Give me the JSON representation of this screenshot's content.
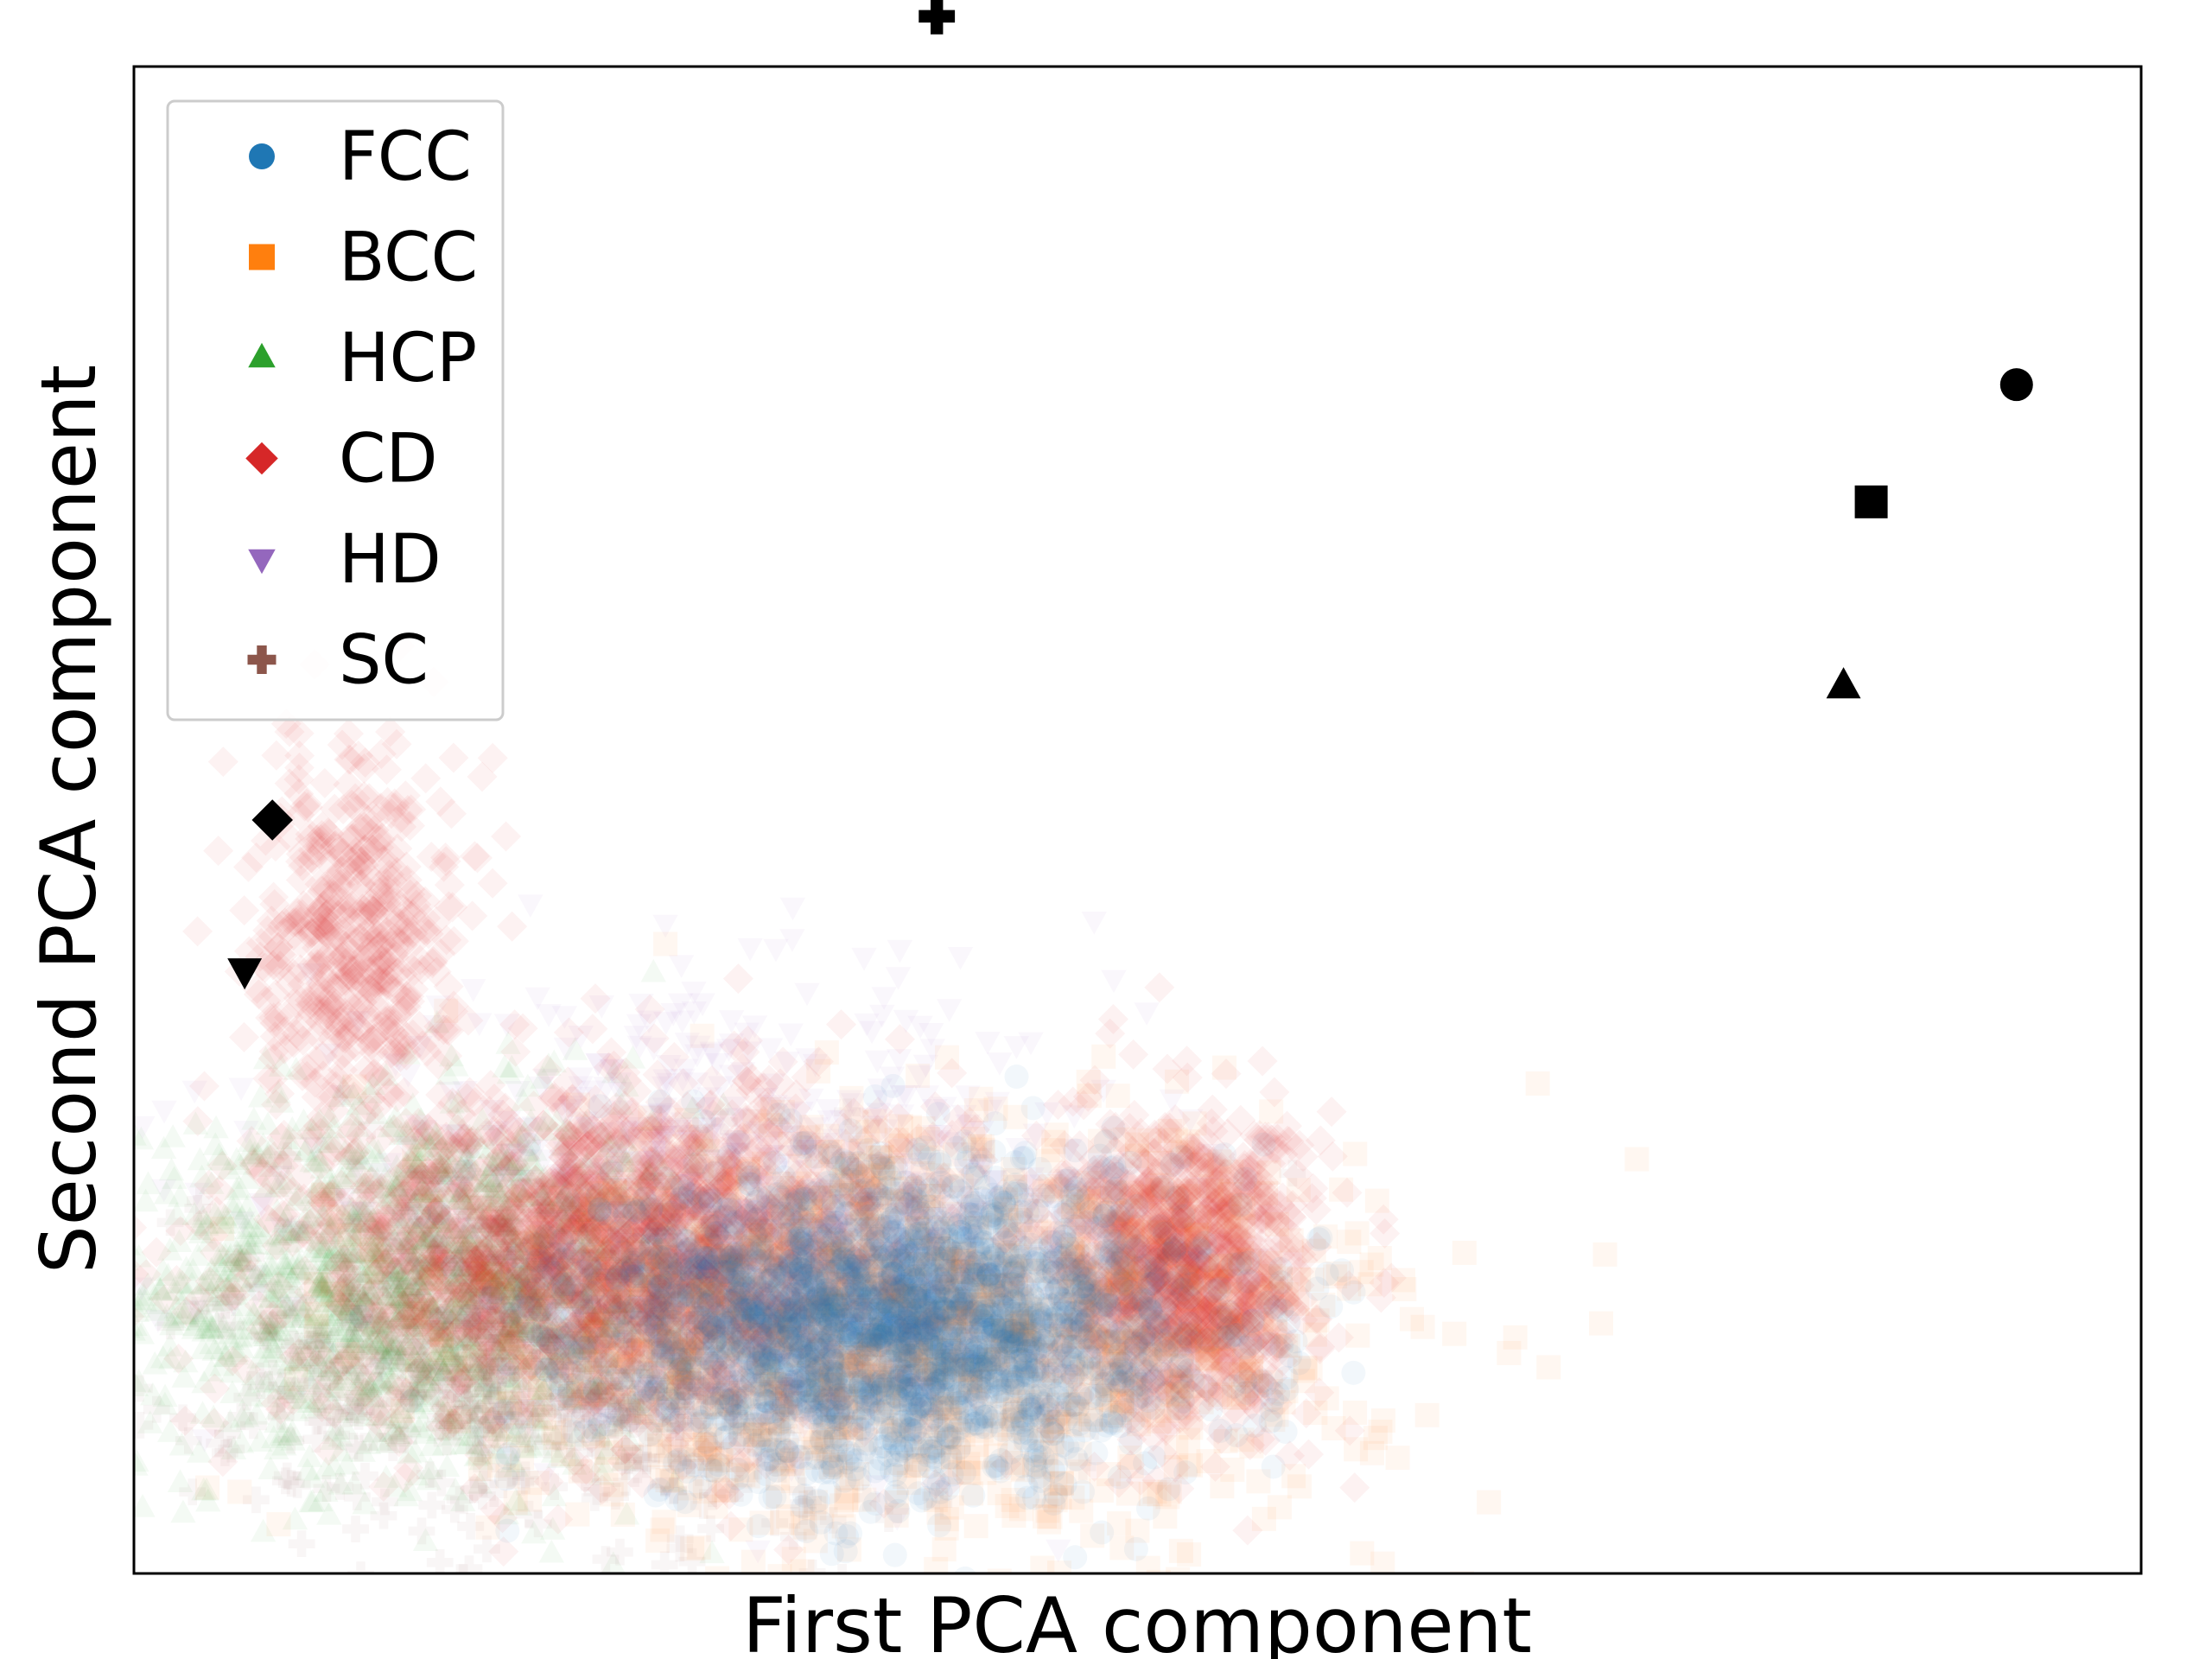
{
  "chart_data": {
    "type": "scatter",
    "title": "",
    "xlabel": "First PCA component",
    "ylabel": "Second PCA component",
    "xlim": [
      -4.5,
      10
    ],
    "ylim": [
      -2.5,
      6.5
    ],
    "xticks": [],
    "yticks": [],
    "grid": false,
    "legend": {
      "position": "top-left",
      "frame": true
    },
    "series": [
      {
        "name": "FCC",
        "marker": "circle",
        "color": "#1f77b4",
        "alpha": 0.06,
        "center": [
          1.0,
          -1.0
        ],
        "spread": [
          1.1,
          0.45
        ],
        "count": 2600
      },
      {
        "name": "BCC",
        "marker": "square",
        "color": "#ff7f0e",
        "alpha": 0.06,
        "center": [
          1.2,
          -1.05
        ],
        "spread": [
          1.6,
          0.6
        ],
        "count": 1500
      },
      {
        "name": "HCP",
        "marker": "triangle",
        "color": "#2ca02c",
        "alpha": 0.05,
        "center": [
          -2.4,
          -0.8
        ],
        "spread": [
          1.0,
          0.55
        ],
        "count": 1800
      },
      {
        "name": "CD",
        "marker": "diamond",
        "color": "#d62728",
        "alpha": 0.06,
        "center": [
          -1.0,
          -0.6
        ],
        "spread": [
          1.2,
          0.5
        ],
        "count": 2200
      },
      {
        "name": "HD",
        "marker": "triangle-down",
        "color": "#9467bd",
        "alpha": 0.05,
        "center": [
          -0.3,
          -0.3
        ],
        "spread": [
          1.5,
          0.6
        ],
        "count": 700
      },
      {
        "name": "SC",
        "marker": "plus",
        "color": "#8c564b",
        "alpha": 0.05,
        "center": [
          -1.2,
          -1.2
        ],
        "spread": [
          1.4,
          0.5
        ],
        "count": 800
      }
    ],
    "extra_clusters": [
      {
        "series": "CD",
        "center": [
          3.1,
          -0.7
        ],
        "spread": [
          0.45,
          0.45
        ],
        "count": 1100
      },
      {
        "series": "CD",
        "center": [
          -2.9,
          1.3
        ],
        "spread": [
          0.35,
          0.55
        ],
        "count": 500
      }
    ],
    "reference_points": [
      {
        "label": "FCC",
        "marker": "circle",
        "x": 9.1,
        "y": 4.6
      },
      {
        "label": "BCC",
        "marker": "square",
        "x": 8.05,
        "y": 3.9
      },
      {
        "label": "HCP",
        "marker": "triangle",
        "x": 7.85,
        "y": 2.8
      },
      {
        "label": "CD",
        "marker": "diamond",
        "x": -3.5,
        "y": 2.0
      },
      {
        "label": "HD",
        "marker": "triangle-down",
        "x": -3.7,
        "y": 1.1
      },
      {
        "label": "SC",
        "marker": "plus",
        "x": 1.3,
        "y": 6.8
      }
    ],
    "reference_color": "#000000"
  }
}
